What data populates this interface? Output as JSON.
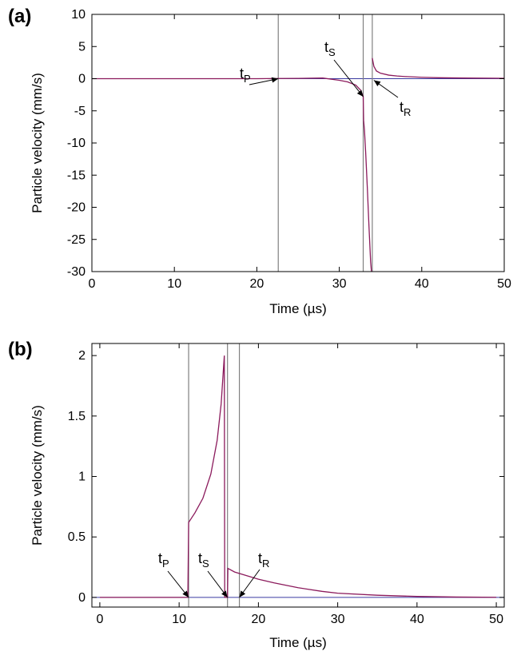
{
  "chart_data": [
    {
      "type": "line",
      "panel_label": "(a)",
      "xlabel": "Time (µs)",
      "ylabel": "Particle velocity (mm/s)",
      "xlim": [
        0,
        50
      ],
      "ylim": [
        -30,
        10
      ],
      "xticks": [
        0,
        10,
        20,
        30,
        40,
        50
      ],
      "yticks": [
        10,
        5,
        0,
        -5,
        -10,
        -15,
        -20,
        -25,
        -30
      ],
      "grid": false,
      "colors": {
        "curve": "#8b1a5c",
        "baseline": "#3a3aa0",
        "marker_lines": "#808080"
      },
      "arrival_times": [
        22.6,
        32.9,
        34.0
      ],
      "series": [
        {
          "points": [
            [
              0,
              0
            ],
            [
              20,
              0
            ],
            [
              22.6,
              0.03
            ],
            [
              25,
              0.05
            ],
            [
              28,
              0.1
            ],
            [
              30,
              -0.25
            ],
            [
              31,
              -0.5
            ],
            [
              32,
              -1.0
            ],
            [
              32.6,
              -1.8
            ],
            [
              32.9,
              -2.8
            ],
            [
              32.95,
              -6.5
            ],
            [
              33.05,
              -8.0
            ],
            [
              33.2,
              -11.5
            ],
            [
              33.4,
              -17.0
            ],
            [
              33.6,
              -23.0
            ],
            [
              33.8,
              -28.5
            ],
            [
              33.9,
              -30
            ]
          ]
        },
        {
          "points": [
            [
              34.0,
              3.2
            ],
            [
              34.2,
              1.9
            ],
            [
              34.5,
              1.2
            ],
            [
              35,
              0.85
            ],
            [
              36,
              0.55
            ],
            [
              37,
              0.42
            ],
            [
              38,
              0.33
            ],
            [
              40,
              0.22
            ],
            [
              42,
              0.15
            ],
            [
              45,
              0.1
            ],
            [
              50,
              0.06
            ]
          ]
        }
      ],
      "annotations": [
        {
          "label": "t",
          "sub": "P",
          "target": [
            22.6,
            0
          ]
        },
        {
          "label": "t",
          "sub": "S",
          "target": [
            32.9,
            -2.8
          ]
        },
        {
          "label": "t",
          "sub": "R",
          "target": [
            34.0,
            0
          ]
        }
      ]
    },
    {
      "type": "line",
      "panel_label": "(b)",
      "xlabel": "Time (µs)",
      "ylabel": "Particle velocity (mm/s)",
      "xlim": [
        -1,
        51
      ],
      "ylim": [
        -0.08,
        2.1
      ],
      "xticks": [
        0,
        10,
        20,
        30,
        40,
        50
      ],
      "yticks": [
        2,
        1.5,
        1,
        0.5,
        0
      ],
      "grid": false,
      "colors": {
        "curve": "#8b1a5c",
        "baseline": "#3a3aa0",
        "marker_lines": "#808080"
      },
      "arrival_times": [
        11.2,
        16.1,
        17.6
      ],
      "series": [
        {
          "points": [
            [
              0,
              0
            ],
            [
              11.1,
              0
            ],
            [
              11.2,
              0.62
            ],
            [
              12,
              0.7
            ],
            [
              13,
              0.82
            ],
            [
              14,
              1.02
            ],
            [
              14.8,
              1.3
            ],
            [
              15.3,
              1.6
            ],
            [
              15.7,
              2.0
            ],
            [
              15.75,
              0.0
            ],
            [
              16.1,
              0.0
            ],
            [
              16.15,
              0.24
            ],
            [
              17,
              0.21
            ],
            [
              18,
              0.19
            ],
            [
              20,
              0.15
            ],
            [
              22,
              0.12
            ],
            [
              25,
              0.08
            ],
            [
              28,
              0.05
            ],
            [
              30,
              0.035
            ],
            [
              35,
              0.018
            ],
            [
              40,
              0.008
            ],
            [
              45,
              0.003
            ],
            [
              50,
              0.001
            ]
          ]
        }
      ],
      "annotations": [
        {
          "label": "t",
          "sub": "P",
          "target": [
            11.2,
            0
          ]
        },
        {
          "label": "t",
          "sub": "S",
          "target": [
            16.1,
            0
          ]
        },
        {
          "label": "t",
          "sub": "R",
          "target": [
            17.6,
            0
          ]
        }
      ]
    }
  ]
}
